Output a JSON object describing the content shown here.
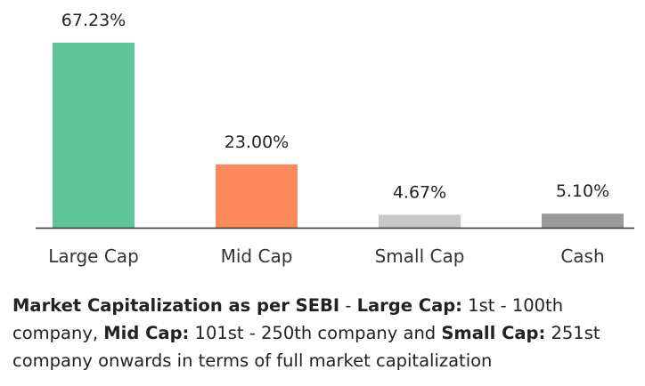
{
  "chart_data": {
    "type": "bar",
    "categories": [
      "Large Cap",
      "Mid Cap",
      "Small Cap",
      "Cash"
    ],
    "values": [
      67.23,
      23.0,
      4.67,
      5.1
    ],
    "value_labels": [
      "67.23%",
      "23.00%",
      "4.67%",
      "5.10%"
    ],
    "colors": [
      "#5fc49a",
      "#fd8a5a",
      "#c8c8c8",
      "#9a9a9a"
    ],
    "ylim": [
      0,
      70
    ],
    "grid": false,
    "title": "",
    "xlabel": "",
    "ylabel": ""
  },
  "footnote": {
    "t1": "Market Capitalization as per SEBI",
    "t2": " - ",
    "t3": "Large Cap:",
    "t4": " 1st - 100th company, ",
    "t5": "Mid Cap:",
    "t6": " 101st - 250th company and ",
    "t7": "Small Cap:",
    "t8": " 251st company onwards in terms of full market capitalization"
  }
}
